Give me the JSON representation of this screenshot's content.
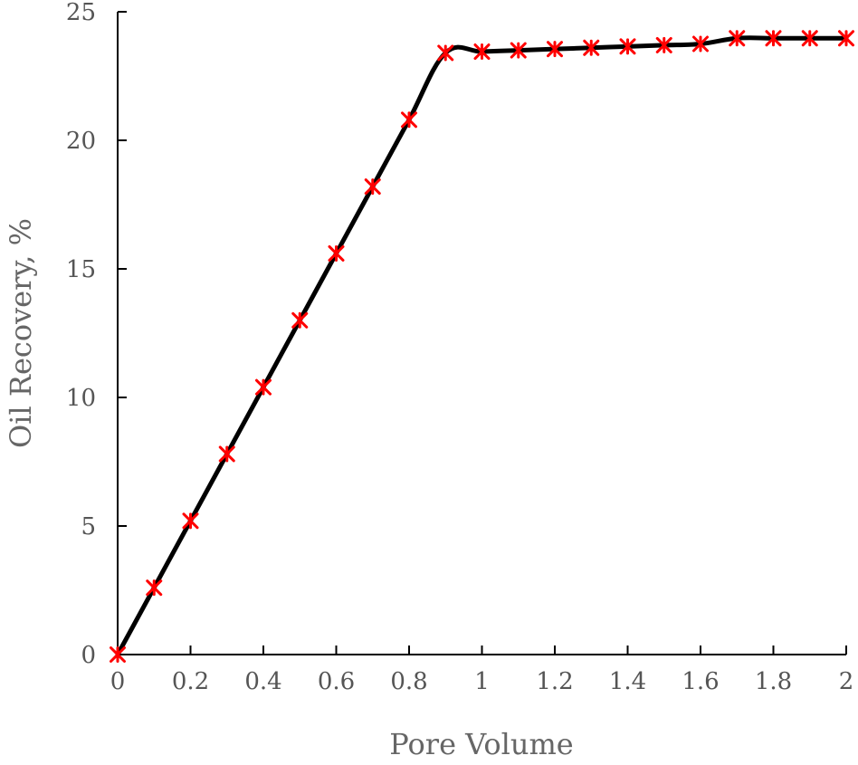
{
  "chart_data": {
    "type": "line",
    "title": "",
    "xlabel": "Pore Volume",
    "ylabel": "Oil Recovery, %",
    "xlim": [
      0,
      2
    ],
    "ylim": [
      0,
      25
    ],
    "x_ticks": [
      "0",
      "0.2",
      "0.4",
      "0.6",
      "0.8",
      "1",
      "1.2",
      "1.4",
      "1.6",
      "1.8",
      "2"
    ],
    "y_ticks": [
      "0",
      "5",
      "10",
      "15",
      "20",
      "25"
    ],
    "grid": false,
    "legend": "none",
    "series": [
      {
        "line_color": "#000000",
        "marker_color": "#ff0000",
        "marker": "asterisk",
        "points": [
          {
            "x": 0,
            "y": 0
          },
          {
            "x": 0.1,
            "y": 2.6
          },
          {
            "x": 0.2,
            "y": 5.2
          },
          {
            "x": 0.3,
            "y": 7.8
          },
          {
            "x": 0.4,
            "y": 10.4
          },
          {
            "x": 0.5,
            "y": 13.0
          },
          {
            "x": 0.6,
            "y": 15.6
          },
          {
            "x": 0.7,
            "y": 18.2
          },
          {
            "x": 0.8,
            "y": 20.8
          },
          {
            "x": 0.9,
            "y": 23.4
          },
          {
            "x": 1.0,
            "y": 23.45
          },
          {
            "x": 1.1,
            "y": 23.5
          },
          {
            "x": 1.2,
            "y": 23.55
          },
          {
            "x": 1.3,
            "y": 23.6
          },
          {
            "x": 1.4,
            "y": 23.65
          },
          {
            "x": 1.5,
            "y": 23.7
          },
          {
            "x": 1.6,
            "y": 23.75
          },
          {
            "x": 1.7,
            "y": 23.97
          },
          {
            "x": 1.8,
            "y": 23.97
          },
          {
            "x": 1.9,
            "y": 23.97
          },
          {
            "x": 2.0,
            "y": 23.97
          }
        ]
      }
    ]
  }
}
